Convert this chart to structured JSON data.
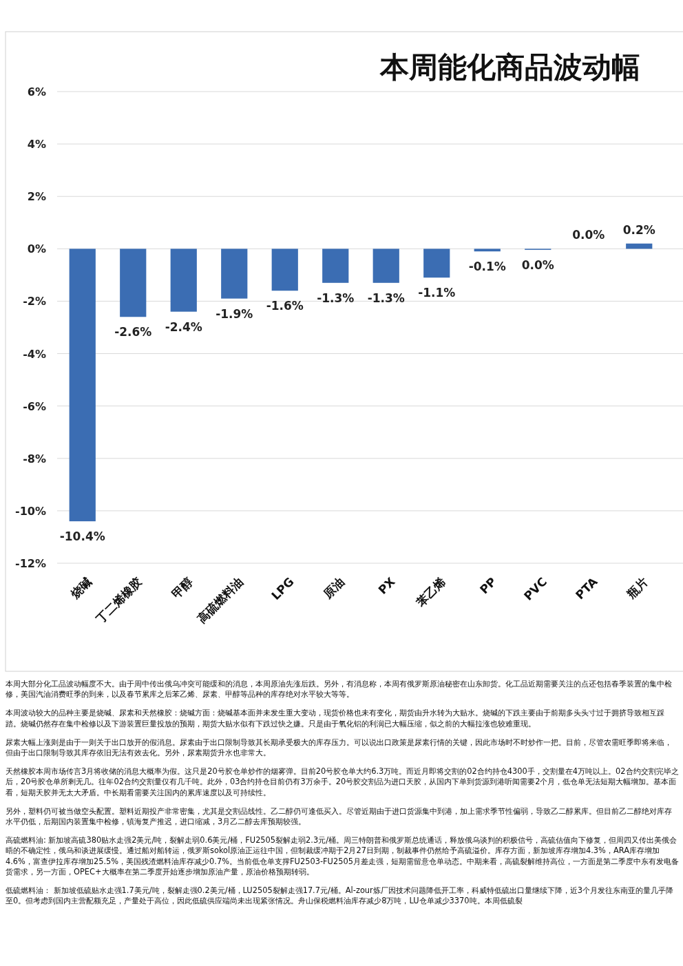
{
  "chart_data": {
    "type": "bar",
    "title": "本周能化商品波动幅",
    "categories": [
      "烧碱",
      "丁二烯橡胶",
      "甲醇",
      "高硫燃料油",
      "LPG",
      "原油",
      "PX",
      "苯乙烯",
      "PP",
      "PVC",
      "PTA",
      "瓶片"
    ],
    "values": [
      -10.4,
      -2.6,
      -2.4,
      -1.9,
      -1.6,
      -1.3,
      -1.3,
      -1.1,
      -0.1,
      -0.04,
      0.0,
      0.2
    ],
    "value_labels": [
      "-10.4%",
      "-2.6%",
      "-2.4%",
      "-1.9%",
      "-1.6%",
      "-1.3%",
      "-1.3%",
      "-1.1%",
      "-0.1%",
      "0.0%",
      "0.0%",
      "0.2%"
    ],
    "color": "#3b6db3",
    "ylim": [
      -12,
      6
    ],
    "yticks": [
      {
        "value": -12,
        "label": "-12%"
      },
      {
        "value": -10,
        "label": "-10%"
      },
      {
        "value": -8,
        "label": "-8%"
      },
      {
        "value": -6,
        "label": "-6%"
      },
      {
        "value": -4,
        "label": "-4%"
      },
      {
        "value": -2,
        "label": "-2%"
      },
      {
        "value": 0,
        "label": "0%"
      },
      {
        "value": 2,
        "label": "2%"
      },
      {
        "value": 4,
        "label": "4%"
      },
      {
        "value": 6,
        "label": "6%"
      }
    ],
    "grid": "y",
    "annotations": [
      "本周大部分化工品波动幅度不大。由于周中传出俄乌冲突可能缓和的消息，本周原油先涨后跌。另外，有消息称，本周有俄罗斯原油秘密在山东卸货。化工品近期需要关注的点还包括春季装置的集中检修，美国汽油消费旺季的到来，以及春节累库之后苯乙烯、尿素、甲醇等品种的库存绝对水平较大等等。",
      "本周波动较大的品种主要是烧碱、尿素和天然橡胶：烧碱方面：烧碱基本面并未发生重大变动，现货价格也未有变化，期货由升水转为大贴水。烧碱的下跌主要由于前期多头头寸过于拥挤导致相互踩踏。烧碱仍然存在集中检修以及下游装置巨量投放的预期，期货大贴水似有下跌过快之嫌。只是由于氧化铝的利润已大幅压缩，似之前的大幅拉涨也较难重现。",
      "尿素大幅上涨则是由于一则关于出口放开的假消息。尿素由于出口限制导致其长期承受极大的库存压力。可以说出口政策是尿素行情的关键，因此市场时不时炒作一把。目前，尽管农需旺季即将来临，但由于出口限制导致其库存依旧无法有效去化。另外，尿素期货升水也非常大。",
      "天然橡胶本周市场传言3月将收储的消息大概率为假。这只是20号胶仓单炒作的烟雾弹。目前20号胶仓单大约6.3万吨。而近月即将交割的02合约持仓4300手，交割量在4万吨以上。02合约交割完毕之后，20号胶仓单所剩无几。往年02合约交割量仅有几千吨。此外，03合约持仓目前仍有3万余手。20号胶交割品为进口天胶，从国内下单到货源到港听闻需要2个月，低仓单无法短期大幅增加。基本面看，短期天胶并无太大矛盾。中长期看需要关注国内的累库速度以及可持续性。",
      "另外，塑料仍可被当做空头配置。塑料近期投产非常密集，尤其是交割品线性。乙二醇仍可逢低买入。尽管近期由于进口货源集中到港，加上需求季节性偏弱，导致乙二醇累库。但目前乙二醇绝对库存水平仍低，后期国内装置集中检修，镇海复产推迟，进口缩减，3月乙二醇去库预期较强。",
      "高硫燃料油: 新加坡高硫380贴水走强2美元/吨，裂解走弱0.6美元/桶，FU2505裂解走弱2.3元/桶。周三特朗普和俄罗斯总统通话，释放俄乌谈判的积极信号，高硫估值向下修复，但周四又传出美俄会晤的不确定性，俄乌和谈进展缓慢。通过船对船转运，俄罗斯sokol原油正运往中国，但制裁缓冲期于2月27日到期，制裁事件仍然给予高硫溢价。库存方面，新加坡库存增加4.3%，ARA库存增加4.6%，富查伊拉库存增加25.5%，美国残渣燃料油库存减少0.7%。当前低仓单支撑FU2503-FU2505月差走强，短期需留意仓单动态。中期来看，高硫裂解维持高位，一方面是第二季度中东有发电备货需求，另一方面，OPEC+大概率在第二季度开始逐步增加原油产量，原油价格预期转弱。",
      "低硫燃料油： 新加坡低硫贴水走强1.7美元/吨，裂解走强0.2美元/桶，LU2505裂解走强17.7元/桶。Al-zour炼厂因技术问题降低开工率，科威特低硫出口量继续下降，近3个月发往东南亚的量几乎降至0。但考虑到国内主营配额充足，产量处于高位，因此低硫供应端尚未出现紧张情况。舟山保税燃料油库存减少8万吨，LU仓单减少3370吨。本周低硫裂"
    ]
  }
}
